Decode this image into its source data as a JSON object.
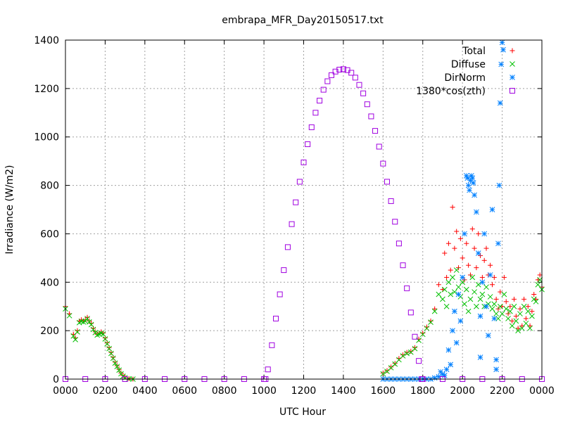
{
  "chart_data": {
    "type": "scatter",
    "title": "embrapa_MFR_Day20150517.txt",
    "xlabel": "UTC Hour",
    "ylabel": "Irradiance (W/m2)",
    "xlim": [
      0,
      24
    ],
    "ylim": [
      0,
      1400
    ],
    "grid": true,
    "legend_position": "top-right",
    "x_ticks": [
      {
        "v": 0,
        "label": "0000"
      },
      {
        "v": 2,
        "label": "0200"
      },
      {
        "v": 4,
        "label": "0400"
      },
      {
        "v": 6,
        "label": "0600"
      },
      {
        "v": 8,
        "label": "0800"
      },
      {
        "v": 10,
        "label": "1000"
      },
      {
        "v": 12,
        "label": "1200"
      },
      {
        "v": 14,
        "label": "1400"
      },
      {
        "v": 16,
        "label": "1600"
      },
      {
        "v": 18,
        "label": "1800"
      },
      {
        "v": 20,
        "label": "2000"
      },
      {
        "v": 22,
        "label": "2200"
      },
      {
        "v": 24,
        "label": "0000"
      }
    ],
    "y_ticks": [
      0,
      200,
      400,
      600,
      800,
      1000,
      1200,
      1400
    ],
    "series": [
      {
        "name": "Total",
        "marker": "plus",
        "color": "#ff0000",
        "points": [
          [
            0.0,
            300
          ],
          [
            0.2,
            270
          ],
          [
            0.4,
            185
          ],
          [
            0.5,
            170
          ],
          [
            0.6,
            200
          ],
          [
            0.7,
            240
          ],
          [
            0.8,
            245
          ],
          [
            0.9,
            240
          ],
          [
            1.0,
            245
          ],
          [
            1.1,
            255
          ],
          [
            1.2,
            240
          ],
          [
            1.3,
            230
          ],
          [
            1.4,
            210
          ],
          [
            1.5,
            195
          ],
          [
            1.6,
            185
          ],
          [
            1.7,
            190
          ],
          [
            1.8,
            195
          ],
          [
            1.9,
            190
          ],
          [
            2.0,
            170
          ],
          [
            2.1,
            150
          ],
          [
            2.2,
            130
          ],
          [
            2.3,
            110
          ],
          [
            2.4,
            90
          ],
          [
            2.5,
            70
          ],
          [
            2.6,
            55
          ],
          [
            2.7,
            40
          ],
          [
            2.8,
            25
          ],
          [
            2.9,
            15
          ],
          [
            3.0,
            8
          ],
          [
            3.2,
            2
          ],
          [
            3.4,
            0
          ],
          [
            16.0,
            25
          ],
          [
            16.2,
            35
          ],
          [
            16.4,
            50
          ],
          [
            16.6,
            65
          ],
          [
            16.8,
            85
          ],
          [
            17.0,
            100
          ],
          [
            17.2,
            110
          ],
          [
            17.4,
            115
          ],
          [
            17.6,
            130
          ],
          [
            17.8,
            165
          ],
          [
            18.0,
            190
          ],
          [
            18.2,
            215
          ],
          [
            18.4,
            240
          ],
          [
            18.6,
            290
          ],
          [
            18.8,
            390
          ],
          [
            19.0,
            370
          ],
          [
            19.1,
            520
          ],
          [
            19.2,
            420
          ],
          [
            19.3,
            560
          ],
          [
            19.4,
            450
          ],
          [
            19.5,
            710
          ],
          [
            19.6,
            540
          ],
          [
            19.7,
            610
          ],
          [
            19.8,
            460
          ],
          [
            19.9,
            580
          ],
          [
            20.0,
            500
          ],
          [
            20.1,
            410
          ],
          [
            20.2,
            560
          ],
          [
            20.3,
            470
          ],
          [
            20.4,
            430
          ],
          [
            20.5,
            620
          ],
          [
            20.6,
            540
          ],
          [
            20.7,
            460
          ],
          [
            20.8,
            600
          ],
          [
            20.9,
            510
          ],
          [
            21.0,
            420
          ],
          [
            21.1,
            490
          ],
          [
            21.2,
            540
          ],
          [
            21.3,
            430
          ],
          [
            21.4,
            470
          ],
          [
            21.5,
            390
          ],
          [
            21.6,
            420
          ],
          [
            21.7,
            330
          ],
          [
            21.8,
            290
          ],
          [
            21.9,
            360
          ],
          [
            22.0,
            300
          ],
          [
            22.1,
            420
          ],
          [
            22.2,
            320
          ],
          [
            22.3,
            270
          ],
          [
            22.4,
            300
          ],
          [
            22.5,
            240
          ],
          [
            22.6,
            330
          ],
          [
            22.7,
            260
          ],
          [
            22.8,
            210
          ],
          [
            22.9,
            290
          ],
          [
            23.0,
            220
          ],
          [
            23.1,
            330
          ],
          [
            23.2,
            250
          ],
          [
            23.3,
            300
          ],
          [
            23.4,
            220
          ],
          [
            23.5,
            280
          ],
          [
            23.6,
            350
          ],
          [
            23.7,
            330
          ],
          [
            23.8,
            410
          ],
          [
            23.9,
            430
          ],
          [
            24.0,
            380
          ]
        ]
      },
      {
        "name": "Diffuse",
        "marker": "cross",
        "color": "#00c000",
        "points": [
          [
            0.0,
            290
          ],
          [
            0.2,
            262
          ],
          [
            0.4,
            178
          ],
          [
            0.5,
            163
          ],
          [
            0.6,
            195
          ],
          [
            0.7,
            233
          ],
          [
            0.8,
            238
          ],
          [
            0.9,
            236
          ],
          [
            1.0,
            240
          ],
          [
            1.1,
            250
          ],
          [
            1.2,
            236
          ],
          [
            1.3,
            225
          ],
          [
            1.4,
            205
          ],
          [
            1.5,
            192
          ],
          [
            1.6,
            182
          ],
          [
            1.7,
            186
          ],
          [
            1.8,
            190
          ],
          [
            1.9,
            186
          ],
          [
            2.0,
            166
          ],
          [
            2.1,
            146
          ],
          [
            2.2,
            126
          ],
          [
            2.3,
            106
          ],
          [
            2.4,
            86
          ],
          [
            2.5,
            66
          ],
          [
            2.6,
            52
          ],
          [
            2.7,
            37
          ],
          [
            2.8,
            22
          ],
          [
            2.9,
            12
          ],
          [
            3.0,
            6
          ],
          [
            3.2,
            1
          ],
          [
            3.4,
            0
          ],
          [
            16.0,
            22
          ],
          [
            16.2,
            32
          ],
          [
            16.4,
            47
          ],
          [
            16.6,
            62
          ],
          [
            16.8,
            80
          ],
          [
            17.0,
            96
          ],
          [
            17.2,
            106
          ],
          [
            17.4,
            111
          ],
          [
            17.6,
            126
          ],
          [
            17.8,
            160
          ],
          [
            18.0,
            185
          ],
          [
            18.2,
            210
          ],
          [
            18.4,
            235
          ],
          [
            18.6,
            280
          ],
          [
            18.8,
            350
          ],
          [
            19.0,
            330
          ],
          [
            19.1,
            370
          ],
          [
            19.2,
            300
          ],
          [
            19.3,
            400
          ],
          [
            19.4,
            350
          ],
          [
            19.5,
            420
          ],
          [
            19.6,
            360
          ],
          [
            19.7,
            450
          ],
          [
            19.8,
            380
          ],
          [
            19.9,
            340
          ],
          [
            20.0,
            400
          ],
          [
            20.1,
            310
          ],
          [
            20.2,
            370
          ],
          [
            20.3,
            280
          ],
          [
            20.4,
            330
          ],
          [
            20.5,
            420
          ],
          [
            20.6,
            360
          ],
          [
            20.7,
            300
          ],
          [
            20.8,
            390
          ],
          [
            20.9,
            330
          ],
          [
            21.0,
            350
          ],
          [
            21.1,
            300
          ],
          [
            21.2,
            380
          ],
          [
            21.3,
            310
          ],
          [
            21.4,
            340
          ],
          [
            21.5,
            290
          ],
          [
            21.6,
            310
          ],
          [
            21.7,
            270
          ],
          [
            21.8,
            250
          ],
          [
            21.9,
            300
          ],
          [
            22.0,
            270
          ],
          [
            22.1,
            350
          ],
          [
            22.2,
            290
          ],
          [
            22.3,
            250
          ],
          [
            22.4,
            280
          ],
          [
            22.5,
            220
          ],
          [
            22.6,
            300
          ],
          [
            22.7,
            240
          ],
          [
            22.8,
            200
          ],
          [
            22.9,
            270
          ],
          [
            23.0,
            210
          ],
          [
            23.1,
            300
          ],
          [
            23.2,
            230
          ],
          [
            23.3,
            280
          ],
          [
            23.4,
            210
          ],
          [
            23.5,
            260
          ],
          [
            23.6,
            330
          ],
          [
            23.7,
            320
          ],
          [
            23.8,
            390
          ],
          [
            23.9,
            410
          ],
          [
            24.0,
            370
          ]
        ]
      },
      {
        "name": "DirNorm",
        "marker": "star",
        "color": "#0080ff",
        "points": [
          [
            16.0,
            0
          ],
          [
            16.2,
            0
          ],
          [
            16.4,
            0
          ],
          [
            16.6,
            0
          ],
          [
            16.8,
            0
          ],
          [
            17.0,
            0
          ],
          [
            17.2,
            0
          ],
          [
            17.4,
            0
          ],
          [
            17.6,
            0
          ],
          [
            17.8,
            0
          ],
          [
            18.0,
            0
          ],
          [
            18.2,
            0
          ],
          [
            18.4,
            0
          ],
          [
            18.6,
            5
          ],
          [
            18.8,
            10
          ],
          [
            18.9,
            30
          ],
          [
            19.0,
            20
          ],
          [
            19.1,
            15
          ],
          [
            19.2,
            40
          ],
          [
            19.3,
            120
          ],
          [
            19.4,
            60
          ],
          [
            19.5,
            200
          ],
          [
            19.6,
            280
          ],
          [
            19.7,
            150
          ],
          [
            19.8,
            350
          ],
          [
            19.9,
            240
          ],
          [
            20.0,
            420
          ],
          [
            20.1,
            600
          ],
          [
            20.2,
            840
          ],
          [
            20.25,
            830
          ],
          [
            20.3,
            800
          ],
          [
            20.35,
            780
          ],
          [
            20.4,
            820
          ],
          [
            20.45,
            840
          ],
          [
            20.5,
            830
          ],
          [
            20.55,
            810
          ],
          [
            20.6,
            760
          ],
          [
            20.7,
            690
          ],
          [
            20.8,
            520
          ],
          [
            20.9,
            260
          ],
          [
            21.0,
            400
          ],
          [
            21.1,
            600
          ],
          [
            21.2,
            300
          ],
          [
            21.3,
            180
          ],
          [
            21.4,
            430
          ],
          [
            21.5,
            700
          ],
          [
            21.6,
            250
          ],
          [
            21.7,
            80
          ],
          [
            21.8,
            560
          ],
          [
            21.85,
            800
          ],
          [
            21.9,
            1140
          ],
          [
            21.95,
            1300
          ],
          [
            22.0,
            1390
          ],
          [
            22.05,
            1360
          ],
          [
            21.7,
            40
          ],
          [
            20.9,
            90
          ]
        ]
      },
      {
        "name": "1380*cos(zth)",
        "marker": "square",
        "color": "#a000e0",
        "points": [
          [
            0.0,
            0
          ],
          [
            1.0,
            0
          ],
          [
            2.0,
            0
          ],
          [
            3.0,
            0
          ],
          [
            4.0,
            0
          ],
          [
            5.0,
            0
          ],
          [
            6.0,
            0
          ],
          [
            7.0,
            0
          ],
          [
            8.0,
            0
          ],
          [
            9.0,
            0
          ],
          [
            10.0,
            0
          ],
          [
            10.08,
            0
          ],
          [
            10.2,
            40
          ],
          [
            10.4,
            140
          ],
          [
            10.6,
            250
          ],
          [
            10.8,
            350
          ],
          [
            11.0,
            450
          ],
          [
            11.2,
            545
          ],
          [
            11.4,
            640
          ],
          [
            11.6,
            730
          ],
          [
            11.8,
            815
          ],
          [
            12.0,
            895
          ],
          [
            12.2,
            970
          ],
          [
            12.4,
            1040
          ],
          [
            12.6,
            1100
          ],
          [
            12.8,
            1150
          ],
          [
            13.0,
            1195
          ],
          [
            13.2,
            1230
          ],
          [
            13.4,
            1255
          ],
          [
            13.6,
            1270
          ],
          [
            13.8,
            1278
          ],
          [
            14.0,
            1280
          ],
          [
            14.2,
            1276
          ],
          [
            14.4,
            1265
          ],
          [
            14.6,
            1245
          ],
          [
            14.8,
            1215
          ],
          [
            15.0,
            1180
          ],
          [
            15.2,
            1135
          ],
          [
            15.4,
            1085
          ],
          [
            15.6,
            1025
          ],
          [
            15.8,
            960
          ],
          [
            16.0,
            890
          ],
          [
            16.2,
            815
          ],
          [
            16.4,
            735
          ],
          [
            16.6,
            650
          ],
          [
            16.8,
            560
          ],
          [
            17.0,
            470
          ],
          [
            17.2,
            375
          ],
          [
            17.4,
            275
          ],
          [
            17.6,
            175
          ],
          [
            17.8,
            75
          ],
          [
            17.95,
            0
          ],
          [
            18.0,
            0
          ],
          [
            19.0,
            0
          ],
          [
            20.0,
            0
          ],
          [
            21.0,
            0
          ],
          [
            22.0,
            0
          ],
          [
            23.0,
            0
          ],
          [
            24.0,
            0
          ]
        ]
      }
    ]
  }
}
